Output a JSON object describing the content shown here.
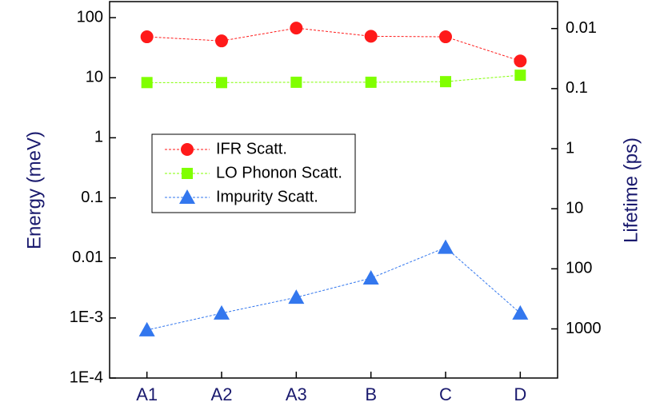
{
  "chart_data": {
    "type": "line",
    "categories": [
      "A1",
      "A2",
      "A3",
      "B",
      "C",
      "D"
    ],
    "series": [
      {
        "name": "IFR Scatt.",
        "color": "#ff1a1a",
        "marker": "circle",
        "values": [
          48,
          41,
          67,
          49,
          48,
          19
        ]
      },
      {
        "name": "LO Phonon Scatt.",
        "color": "#80ff00",
        "marker": "square",
        "values": [
          8.3,
          8.3,
          8.4,
          8.4,
          8.6,
          11
        ]
      },
      {
        "name": "Impurity Scatt.",
        "color": "#3377ee",
        "marker": "triangle",
        "values": [
          0.00063,
          0.0012,
          0.0022,
          0.0046,
          0.0149,
          0.0012
        ]
      }
    ],
    "ylabel": "Energy (meV)",
    "y2label": "Lifetime (ps)",
    "log_scale": true,
    "ylim": [
      0.0001,
      185
    ],
    "yticks": [
      {
        "value": 0.0001,
        "label": "1E-4"
      },
      {
        "value": 0.001,
        "label": "1E-3"
      },
      0.01,
      0.1,
      1,
      10,
      100
    ],
    "y2lim": [
      6580,
      0.00356
    ],
    "y2ticks": [
      1000,
      100,
      10,
      1,
      0.1,
      0.01
    ],
    "legend": "upper-left"
  }
}
